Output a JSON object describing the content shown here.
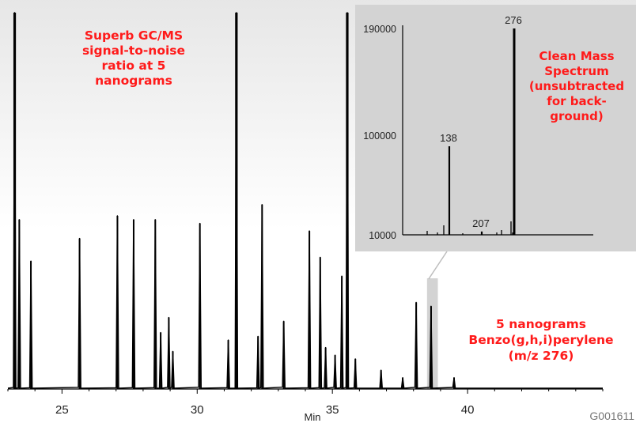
{
  "chart_data": [
    {
      "type": "line",
      "name": "chromatogram",
      "xlabel": "Min",
      "xlim": [
        23.0,
        45.0
      ],
      "ylim": [
        0,
        100
      ],
      "x_ticks": [
        25,
        30,
        35,
        40
      ],
      "peaks": [
        {
          "x": 23.25,
          "y": 100
        },
        {
          "x": 23.42,
          "y": 45
        },
        {
          "x": 23.85,
          "y": 34
        },
        {
          "x": 25.65,
          "y": 40
        },
        {
          "x": 27.05,
          "y": 46
        },
        {
          "x": 27.65,
          "y": 45
        },
        {
          "x": 28.45,
          "y": 45
        },
        {
          "x": 28.65,
          "y": 15
        },
        {
          "x": 28.95,
          "y": 19
        },
        {
          "x": 29.1,
          "y": 10
        },
        {
          "x": 30.1,
          "y": 44
        },
        {
          "x": 31.15,
          "y": 13
        },
        {
          "x": 31.45,
          "y": 100
        },
        {
          "x": 32.25,
          "y": 14
        },
        {
          "x": 32.4,
          "y": 49
        },
        {
          "x": 33.2,
          "y": 18
        },
        {
          "x": 34.15,
          "y": 42
        },
        {
          "x": 34.55,
          "y": 35
        },
        {
          "x": 34.75,
          "y": 11
        },
        {
          "x": 35.1,
          "y": 9
        },
        {
          "x": 35.35,
          "y": 30
        },
        {
          "x": 35.55,
          "y": 100
        },
        {
          "x": 35.85,
          "y": 8
        },
        {
          "x": 36.8,
          "y": 5
        },
        {
          "x": 37.6,
          "y": 3
        },
        {
          "x": 38.1,
          "y": 23
        },
        {
          "x": 38.65,
          "y": 22
        },
        {
          "x": 39.5,
          "y": 3
        }
      ],
      "highlight_x": [
        38.5,
        38.9
      ],
      "highlight_color": "#d3d3d3",
      "line_color": "#000000"
    },
    {
      "type": "line",
      "name": "mass-spectrum",
      "y_ticks": [
        10000,
        100000,
        190000
      ],
      "peaks": [
        {
          "mz": 138,
          "y": 90000
        },
        {
          "mz": 207,
          "y": 13000
        },
        {
          "mz": 276,
          "y": 190000
        }
      ],
      "panel_color": "#d3d3d3"
    }
  ],
  "annotations": {
    "top_left": [
      "Superb GC/MS",
      "signal-to-noise",
      "ratio at 5",
      "nanograms"
    ],
    "inset": [
      "Clean Mass",
      "Spectrum",
      "(unsubtracted",
      "for back-",
      "ground)"
    ],
    "bottom_right": [
      "5 nanograms",
      "Benzo(g,h,i)perylene",
      "(m/z 276)"
    ]
  },
  "figure_id": "G001611",
  "colors": {
    "annotation": "#ff1a1a",
    "trace": "#000000",
    "panel": "#d3d3d3"
  }
}
